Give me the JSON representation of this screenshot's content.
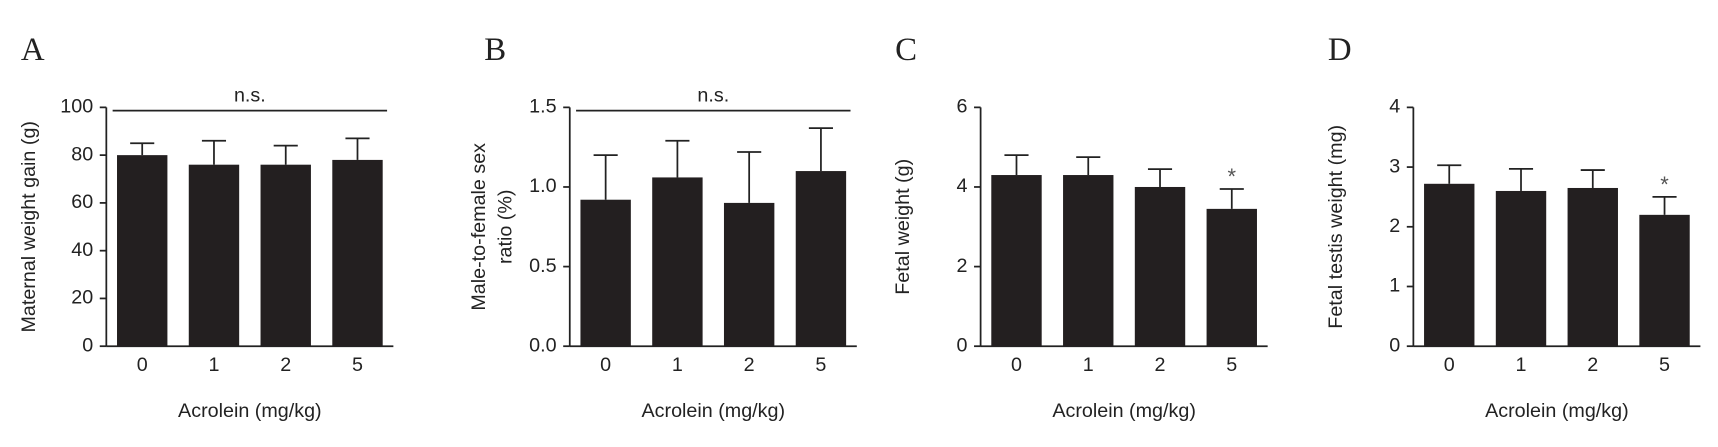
{
  "chart_data": [
    {
      "type": "bar",
      "panel_label": "A",
      "ylabel": [
        "Maternal weight gain (g)"
      ],
      "xlabel": "Acrolein (mg/kg)",
      "categories": [
        "0",
        "1",
        "2",
        "5"
      ],
      "values": [
        80,
        76,
        76,
        78
      ],
      "errors": [
        5,
        10,
        8,
        9
      ],
      "color": "#231f20",
      "ylim": [
        0,
        100
      ],
      "yticks": [
        0,
        20,
        40,
        60,
        80,
        100
      ],
      "annotation": "n.s."
    },
    {
      "type": "bar",
      "panel_label": "B",
      "ylabel": [
        "Male-to-female sex",
        "ratio (%)"
      ],
      "xlabel": "Acrolein (mg/kg)",
      "categories": [
        "0",
        "1",
        "2",
        "5"
      ],
      "values": [
        0.92,
        1.06,
        0.9,
        1.1
      ],
      "errors": [
        0.28,
        0.23,
        0.32,
        0.27
      ],
      "color": "#231f20",
      "ylim": [
        0,
        1.5
      ],
      "yticks": [
        {
          "value": 0,
          "label": "0.0"
        },
        0.5,
        {
          "value": 1,
          "label": "1.0"
        },
        1.5
      ],
      "annotation": "n.s."
    },
    {
      "type": "bar",
      "panel_label": "C",
      "ylabel": [
        "Fetal weight (g)"
      ],
      "xlabel": "Acrolein (mg/kg)",
      "categories": [
        "0",
        "1",
        "2",
        "5"
      ],
      "values": [
        4.3,
        4.3,
        4.0,
        3.45
      ],
      "errors": [
        0.5,
        0.45,
        0.45,
        0.5
      ],
      "color": "#231f20",
      "ylim": [
        0,
        6
      ],
      "yticks": [
        0,
        2,
        4,
        6
      ],
      "significance": [
        null,
        null,
        null,
        "*"
      ]
    },
    {
      "type": "bar",
      "panel_label": "D",
      "ylabel": [
        "Fetal testis weight (mg)"
      ],
      "xlabel": "Acrolein (mg/kg)",
      "categories": [
        "0",
        "1",
        "2",
        "5"
      ],
      "values": [
        2.72,
        2.6,
        2.65,
        2.2
      ],
      "errors": [
        0.31,
        0.37,
        0.3,
        0.3
      ],
      "color": "#231f20",
      "ylim": [
        0,
        4
      ],
      "yticks": [
        0,
        1,
        2,
        3,
        4
      ],
      "significance": [
        null,
        null,
        null,
        "*"
      ]
    }
  ]
}
